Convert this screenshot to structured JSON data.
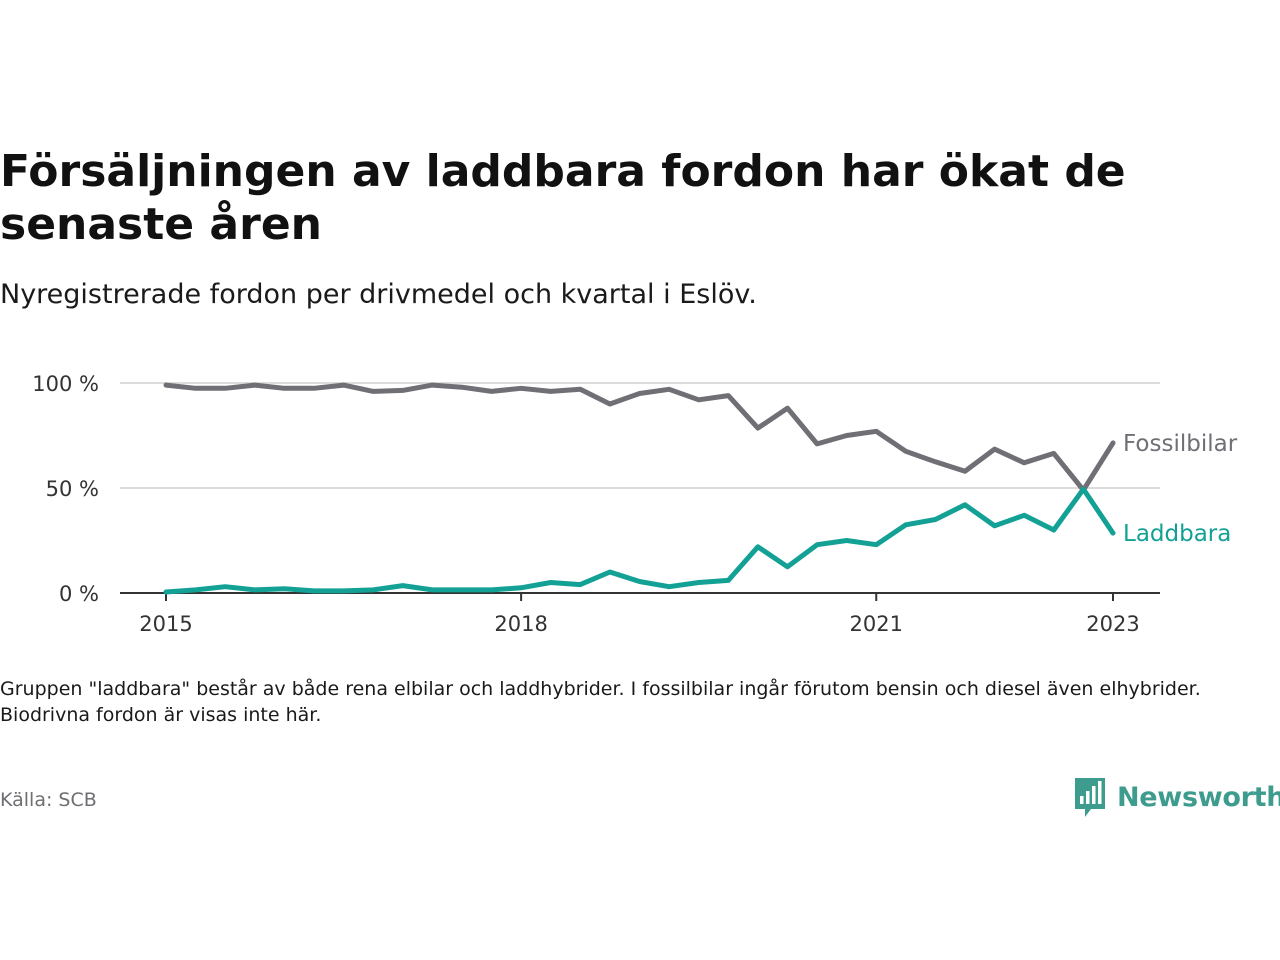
{
  "title": "Försäljningen av laddbara fordon har ökat de senaste åren",
  "subtitle": "Nyregistrerade fordon per drivmedel och kvartal i Eslöv.",
  "note": "Gruppen \"laddbara\" består av både rena elbilar och laddhybrider. I fossilbilar ingår förutom bensin och diesel även elhybrider. Biodrivna fordon är visas inte här.",
  "source": "Källa: SCB",
  "brand": {
    "name": "Newsworthy",
    "icon": "newsworthy-logo-icon",
    "color": "#3e9c8e"
  },
  "chart_data": {
    "type": "line",
    "x": [
      "2015-01",
      "2015-04",
      "2015-07",
      "2015-10",
      "2016-01",
      "2016-04",
      "2016-07",
      "2016-10",
      "2017-01",
      "2017-04",
      "2017-07",
      "2017-10",
      "2018-01",
      "2018-04",
      "2018-07",
      "2018-10",
      "2019-01",
      "2019-04",
      "2019-07",
      "2019-10",
      "2020-01",
      "2020-04",
      "2020-07",
      "2020-10",
      "2021-01",
      "2021-04",
      "2021-07",
      "2021-10",
      "2022-01",
      "2022-04",
      "2022-07",
      "2022-10",
      "2023-01"
    ],
    "x_ticks": [
      "2015",
      "2018",
      "2021",
      "2023"
    ],
    "y_ticks": [
      "0 %",
      "50 %",
      "100 %"
    ],
    "ylim": [
      0,
      100
    ],
    "grid": true,
    "series": [
      {
        "name": "Fossilbilar",
        "color": "#6f6f75",
        "values": [
          99,
          97.5,
          97.5,
          99,
          97.5,
          97.5,
          99,
          96,
          96.5,
          99,
          98,
          96,
          97.5,
          96,
          97,
          90,
          95,
          97,
          92,
          94,
          78.5,
          88,
          71,
          75,
          77,
          67.5,
          62.5,
          58,
          68.5,
          62,
          66.5,
          49,
          71.5
        ]
      },
      {
        "name": "Laddbara",
        "color": "#13a196",
        "values": [
          0.5,
          1.5,
          3,
          1.5,
          2,
          1,
          1,
          1.5,
          3.5,
          1.5,
          1.5,
          1.5,
          2.5,
          5,
          4,
          10,
          5.5,
          3,
          5,
          6,
          22,
          12.5,
          23,
          25,
          23,
          32.5,
          35,
          42,
          32,
          37,
          30,
          49.5,
          28.5
        ]
      }
    ]
  }
}
